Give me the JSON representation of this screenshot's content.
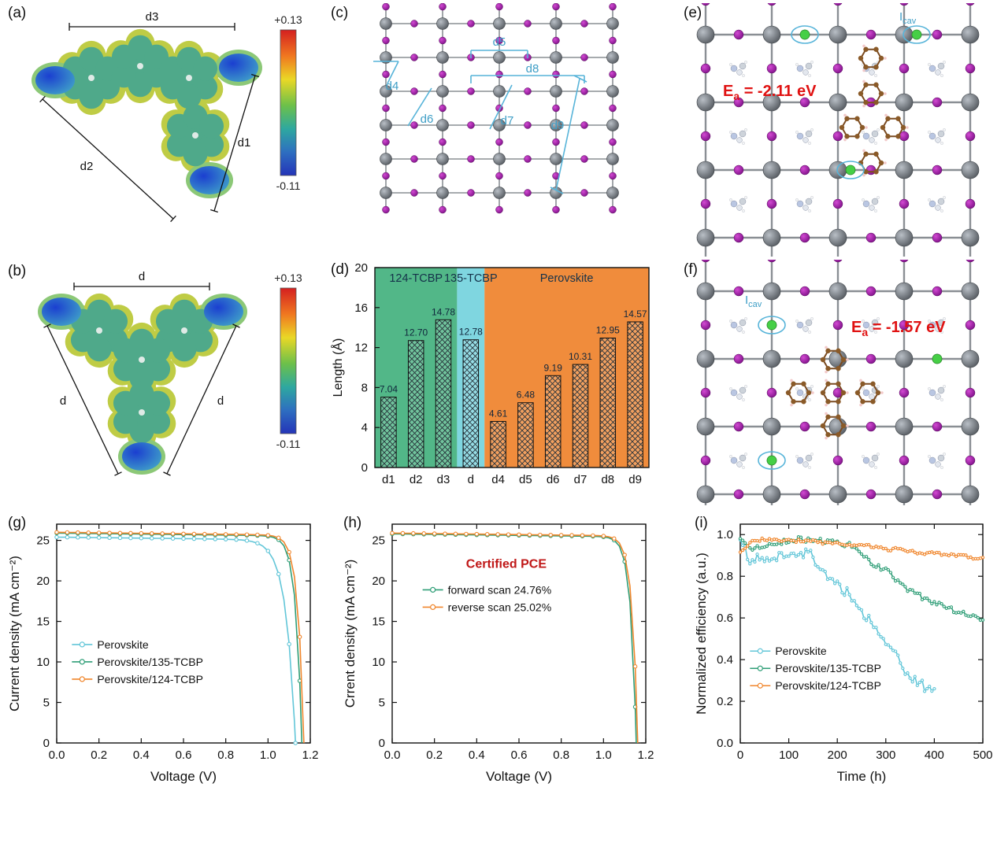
{
  "colors": {
    "cyan_series": "#62c6d8",
    "green_series": "#2f9e77",
    "orange_series": "#f0862c",
    "annotation_blue": "#57b4d9",
    "ea_red": "#e01212",
    "bar_region_green": "#52b788",
    "bar_region_cyan": "#7fd6e0",
    "bar_region_orange": "#f08c3c"
  },
  "panels": {
    "a": {
      "label": "(a)",
      "dim_labels": [
        "d3",
        "d1",
        "d2"
      ],
      "colorbar": {
        "max": "+0.13",
        "min": "-0.11"
      }
    },
    "b": {
      "label": "(b)",
      "dim_labels": [
        "d",
        "d",
        "d"
      ],
      "colorbar": {
        "max": "+0.13",
        "min": "-0.11"
      }
    },
    "c": {
      "label": "(c)",
      "distance_labels": [
        "d4",
        "d5",
        "d6",
        "d7",
        "d8",
        "d9"
      ]
    },
    "d": {
      "label": "(d)"
    },
    "e": {
      "label": "(e)",
      "ea": {
        "base": "E",
        "sub": "a",
        "rest": " = -2.11 eV"
      },
      "icav": {
        "base": "I",
        "sub": "cav"
      }
    },
    "f": {
      "label": "(f)",
      "ea": {
        "base": "E",
        "sub": "a",
        "rest": " = -1.57 eV"
      },
      "icav": {
        "base": "I",
        "sub": "cav"
      }
    },
    "g": {
      "label": "(g)"
    },
    "h": {
      "label": "(h)",
      "annotation": "Certified PCE"
    },
    "i": {
      "label": "(i)"
    }
  },
  "chart_data": [
    {
      "id": "d",
      "type": "bar",
      "categories": [
        "d1",
        "d2",
        "d3",
        "d",
        "d4",
        "d5",
        "d6",
        "d7",
        "d8",
        "d9"
      ],
      "values": [
        7.04,
        12.7,
        14.78,
        12.78,
        4.61,
        6.48,
        9.19,
        10.31,
        12.95,
        14.57
      ],
      "ylabel": "Length (Å)",
      "ylim": [
        0,
        20
      ],
      "yticks": [
        0,
        4,
        8,
        12,
        16,
        20
      ],
      "regions": [
        {
          "label": "124-TCBP",
          "from": 0,
          "to": 3,
          "color": "#52b788"
        },
        {
          "label": "135-TCBP",
          "from": 3,
          "to": 4,
          "color": "#7fd6e0"
        },
        {
          "label": "Perovskite",
          "from": 4,
          "to": 10,
          "color": "#f08c3c"
        }
      ]
    },
    {
      "id": "g",
      "type": "line",
      "xlabel": "Voltage (V)",
      "ylabel": "Current density (mA cm⁻²)",
      "xlim": [
        0.0,
        1.2
      ],
      "ylim": [
        0,
        27
      ],
      "xticks": [
        0.0,
        0.2,
        0.4,
        0.6,
        0.8,
        1.0,
        1.2
      ],
      "yticks": [
        0,
        5,
        10,
        15,
        20,
        25
      ],
      "legend_position": "left-middle",
      "series": [
        {
          "name": "Perovskite",
          "color": "#62c6d8",
          "jsc": 25.4,
          "voc": 1.13
        },
        {
          "name": "Perovskite/135-TCBP",
          "color": "#2f9e77",
          "jsc": 25.9,
          "voc": 1.16
        },
        {
          "name": "Perovskite/124-TCBP",
          "color": "#f0862c",
          "jsc": 26.0,
          "voc": 1.17
        }
      ]
    },
    {
      "id": "h",
      "type": "line",
      "annotation": "Certified PCE",
      "xlabel": "Voltage (V)",
      "ylabel": "Crrent density (mA cm⁻²)",
      "xlim": [
        0.0,
        1.2
      ],
      "ylim": [
        0,
        27
      ],
      "xticks": [
        0.0,
        0.2,
        0.4,
        0.6,
        0.8,
        1.0,
        1.2
      ],
      "yticks": [
        0,
        5,
        10,
        15,
        20,
        25
      ],
      "legend_position": "left-upper",
      "series": [
        {
          "name": "forward scan 24.76%",
          "color": "#2f9e77",
          "jsc": 25.8,
          "voc": 1.155
        },
        {
          "name": "reverse scan 25.02%",
          "color": "#f0862c",
          "jsc": 25.9,
          "voc": 1.162
        }
      ]
    },
    {
      "id": "i",
      "type": "line",
      "xlabel": "Time (h)",
      "ylabel": "Normalized efficiency (a.u.)",
      "xlim": [
        0,
        500
      ],
      "ylim": [
        0.0,
        1.05
      ],
      "xticks": [
        0,
        100,
        200,
        300,
        400,
        500
      ],
      "yticks": [
        0.0,
        0.2,
        0.4,
        0.6,
        0.8,
        1.0
      ],
      "legend_position": "left-lower",
      "series": [
        {
          "name": "Perovskite",
          "color": "#62c6d8",
          "points": [
            [
              0,
              1.0
            ],
            [
              20,
              0.87
            ],
            [
              40,
              0.9
            ],
            [
              60,
              0.86
            ],
            [
              80,
              0.9
            ],
            [
              100,
              0.92
            ],
            [
              120,
              0.88
            ],
            [
              140,
              0.93
            ],
            [
              160,
              0.85
            ],
            [
              180,
              0.8
            ],
            [
              200,
              0.76
            ],
            [
              220,
              0.72
            ],
            [
              240,
              0.66
            ],
            [
              260,
              0.6
            ],
            [
              280,
              0.55
            ],
            [
              300,
              0.48
            ],
            [
              320,
              0.42
            ],
            [
              340,
              0.35
            ],
            [
              360,
              0.3
            ],
            [
              380,
              0.27
            ],
            [
              400,
              0.26
            ]
          ]
        },
        {
          "name": "Perovskite/135-TCBP",
          "color": "#2f9e77",
          "points": [
            [
              0,
              0.97
            ],
            [
              25,
              0.93
            ],
            [
              50,
              0.95
            ],
            [
              75,
              0.96
            ],
            [
              100,
              0.97
            ],
            [
              125,
              0.98
            ],
            [
              150,
              0.97
            ],
            [
              175,
              0.97
            ],
            [
              200,
              0.96
            ],
            [
              225,
              0.95
            ],
            [
              250,
              0.9
            ],
            [
              275,
              0.86
            ],
            [
              300,
              0.83
            ],
            [
              325,
              0.78
            ],
            [
              350,
              0.73
            ],
            [
              375,
              0.7
            ],
            [
              400,
              0.67
            ],
            [
              425,
              0.65
            ],
            [
              450,
              0.63
            ],
            [
              475,
              0.61
            ],
            [
              500,
              0.59
            ]
          ]
        },
        {
          "name": "Perovskite/124-TCBP",
          "color": "#f0862c",
          "points": [
            [
              0,
              0.92
            ],
            [
              25,
              0.97
            ],
            [
              50,
              0.98
            ],
            [
              75,
              0.97
            ],
            [
              100,
              0.97
            ],
            [
              125,
              0.97
            ],
            [
              150,
              0.97
            ],
            [
              175,
              0.96
            ],
            [
              200,
              0.96
            ],
            [
              225,
              0.95
            ],
            [
              250,
              0.95
            ],
            [
              275,
              0.94
            ],
            [
              300,
              0.93
            ],
            [
              325,
              0.93
            ],
            [
              350,
              0.92
            ],
            [
              375,
              0.91
            ],
            [
              400,
              0.91
            ],
            [
              425,
              0.9
            ],
            [
              450,
              0.9
            ],
            [
              475,
              0.89
            ],
            [
              500,
              0.89
            ]
          ]
        }
      ]
    }
  ]
}
